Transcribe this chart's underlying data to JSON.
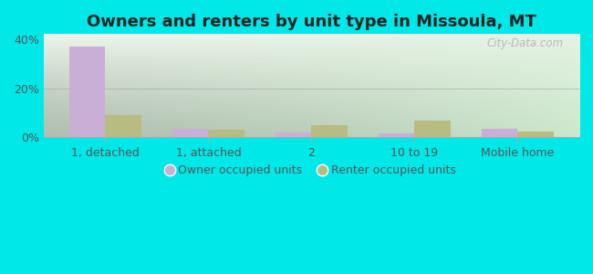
{
  "title": "Owners and renters by unit type in Missoula, MT",
  "categories": [
    "1, detached",
    "1, attached",
    "2",
    "10 to 19",
    "Mobile home"
  ],
  "owner_values": [
    37.0,
    3.5,
    2.0,
    1.5,
    3.5
  ],
  "renter_values": [
    9.0,
    3.2,
    5.0,
    7.0,
    2.2
  ],
  "owner_color": "#c9aed6",
  "renter_color": "#b8bc80",
  "background_outer": "#00e8e8",
  "background_inner_topleft": "#f0f8ee",
  "background_inner_bottomright": "#cce8cc",
  "ylim": [
    0,
    42
  ],
  "yticks": [
    0,
    20,
    40
  ],
  "ytick_labels": [
    "0%",
    "20%",
    "40%"
  ],
  "bar_width": 0.35,
  "legend_owner": "Owner occupied units",
  "legend_renter": "Renter occupied units",
  "watermark": "City-Data.com",
  "title_fontsize": 13,
  "tick_fontsize": 9,
  "legend_fontsize": 9
}
